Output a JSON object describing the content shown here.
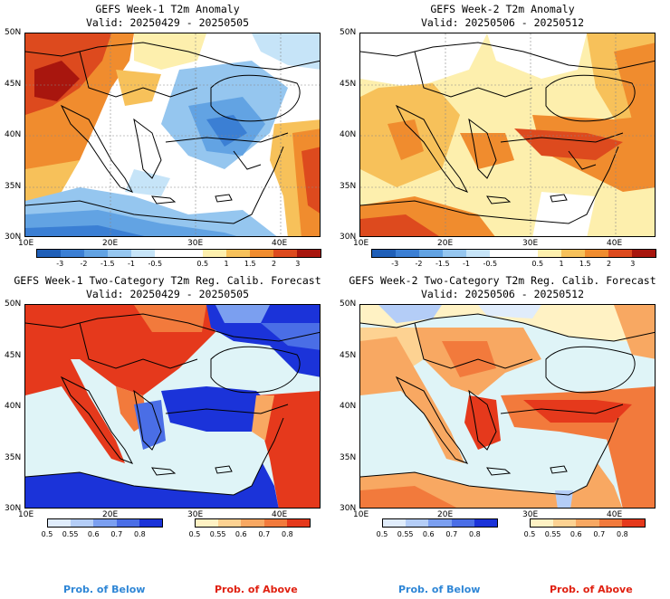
{
  "colors": {
    "sea": "#dff4f7",
    "coast": "#000000",
    "anom_scale": [
      "#1f5fb8",
      "#3b7fd4",
      "#62a3e3",
      "#95c6ef",
      "#c6e4f8",
      "#ffffff",
      "#ffffff",
      "#fdefad",
      "#f7c15a",
      "#f08c2e",
      "#dd4a1e",
      "#a8160e"
    ],
    "prob_below": [
      "#e0ecfb",
      "#b4cdf7",
      "#7b9ff0",
      "#4a6ee6",
      "#1b33d9"
    ],
    "prob_above": [
      "#fff2c4",
      "#fdd292",
      "#f8a862",
      "#f27a3c",
      "#e5391c"
    ]
  },
  "panels": [
    {
      "title_line1": "GEFS Week-1 T2m Anomaly",
      "title_line2": "Valid: 20250429 - 20250505",
      "type": "anomaly"
    },
    {
      "title_line1": "GEFS Week-2 T2m Anomaly",
      "title_line2": "Valid: 20250506 - 20250512",
      "type": "anomaly"
    },
    {
      "title_line1": "GEFS Week-1 Two-Category T2m Reg. Calib. Forecast",
      "title_line2": "Valid: 20250429 - 20250505",
      "type": "probability"
    },
    {
      "title_line1": "GEFS Week-2 Two-Category T2m Reg. Calib. Forecast",
      "title_line2": "Valid: 20250506 - 20250512",
      "type": "probability"
    }
  ],
  "axes": {
    "lat_labels": [
      "50N",
      "45N",
      "40N",
      "35N",
      "30N"
    ],
    "lon_labels": [
      "10E",
      "20E",
      "30E",
      "40E"
    ]
  },
  "anomaly_colorbar_labels": [
    "-3",
    "-2",
    "-1.5",
    "-1",
    "-0.5",
    "0.5",
    "1",
    "1.5",
    "2",
    "3"
  ],
  "prob_colorbar_labels": [
    "0.5",
    "0.55",
    "0.6",
    "0.7",
    "0.8"
  ],
  "legend": {
    "below": "Prob. of Below",
    "above": "Prob. of Above"
  }
}
